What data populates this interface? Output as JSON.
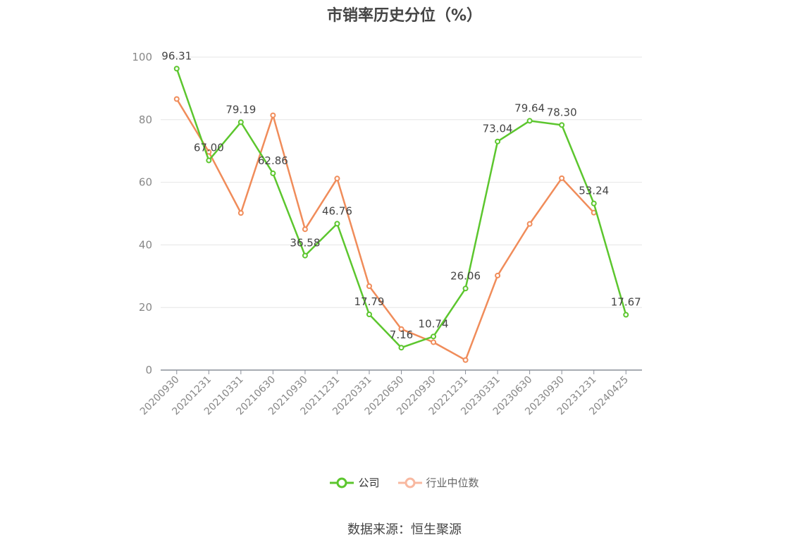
{
  "chart_data": {
    "type": "line",
    "title": "市销率历史分位（%）",
    "categories": [
      "20200930",
      "20201231",
      "20210331",
      "20210630",
      "20210930",
      "20211231",
      "20220331",
      "20220630",
      "20220930",
      "20221231",
      "20230331",
      "20230630",
      "20230930",
      "20231231",
      "20240425"
    ],
    "series": [
      {
        "name": "公司",
        "color": "#5cc62e",
        "values": [
          96.31,
          67.0,
          79.19,
          62.86,
          36.58,
          46.76,
          17.79,
          7.16,
          10.74,
          26.06,
          73.04,
          79.64,
          78.3,
          53.24,
          17.67
        ],
        "labels": [
          "96.31",
          "67.00",
          "79.19",
          "62.86",
          "36.58",
          "46.76",
          "17.79",
          "7.16",
          "10.74",
          "26.06",
          "73.04",
          "79.64",
          "78.30",
          "53.24",
          "17.67"
        ]
      },
      {
        "name": "行业中位数",
        "color": "#f08c5a",
        "values": [
          86.6,
          69.7,
          50.2,
          81.4,
          45.0,
          61.2,
          26.8,
          13.1,
          8.9,
          3.2,
          30.2,
          46.7,
          61.3,
          50.3,
          null
        ]
      }
    ],
    "yticks": [
      "0",
      "20",
      "40",
      "60",
      "80",
      "100"
    ],
    "ylim": [
      0,
      100
    ],
    "grid": true,
    "legend_position": "bottom"
  },
  "source": "数据来源：恒生聚源"
}
